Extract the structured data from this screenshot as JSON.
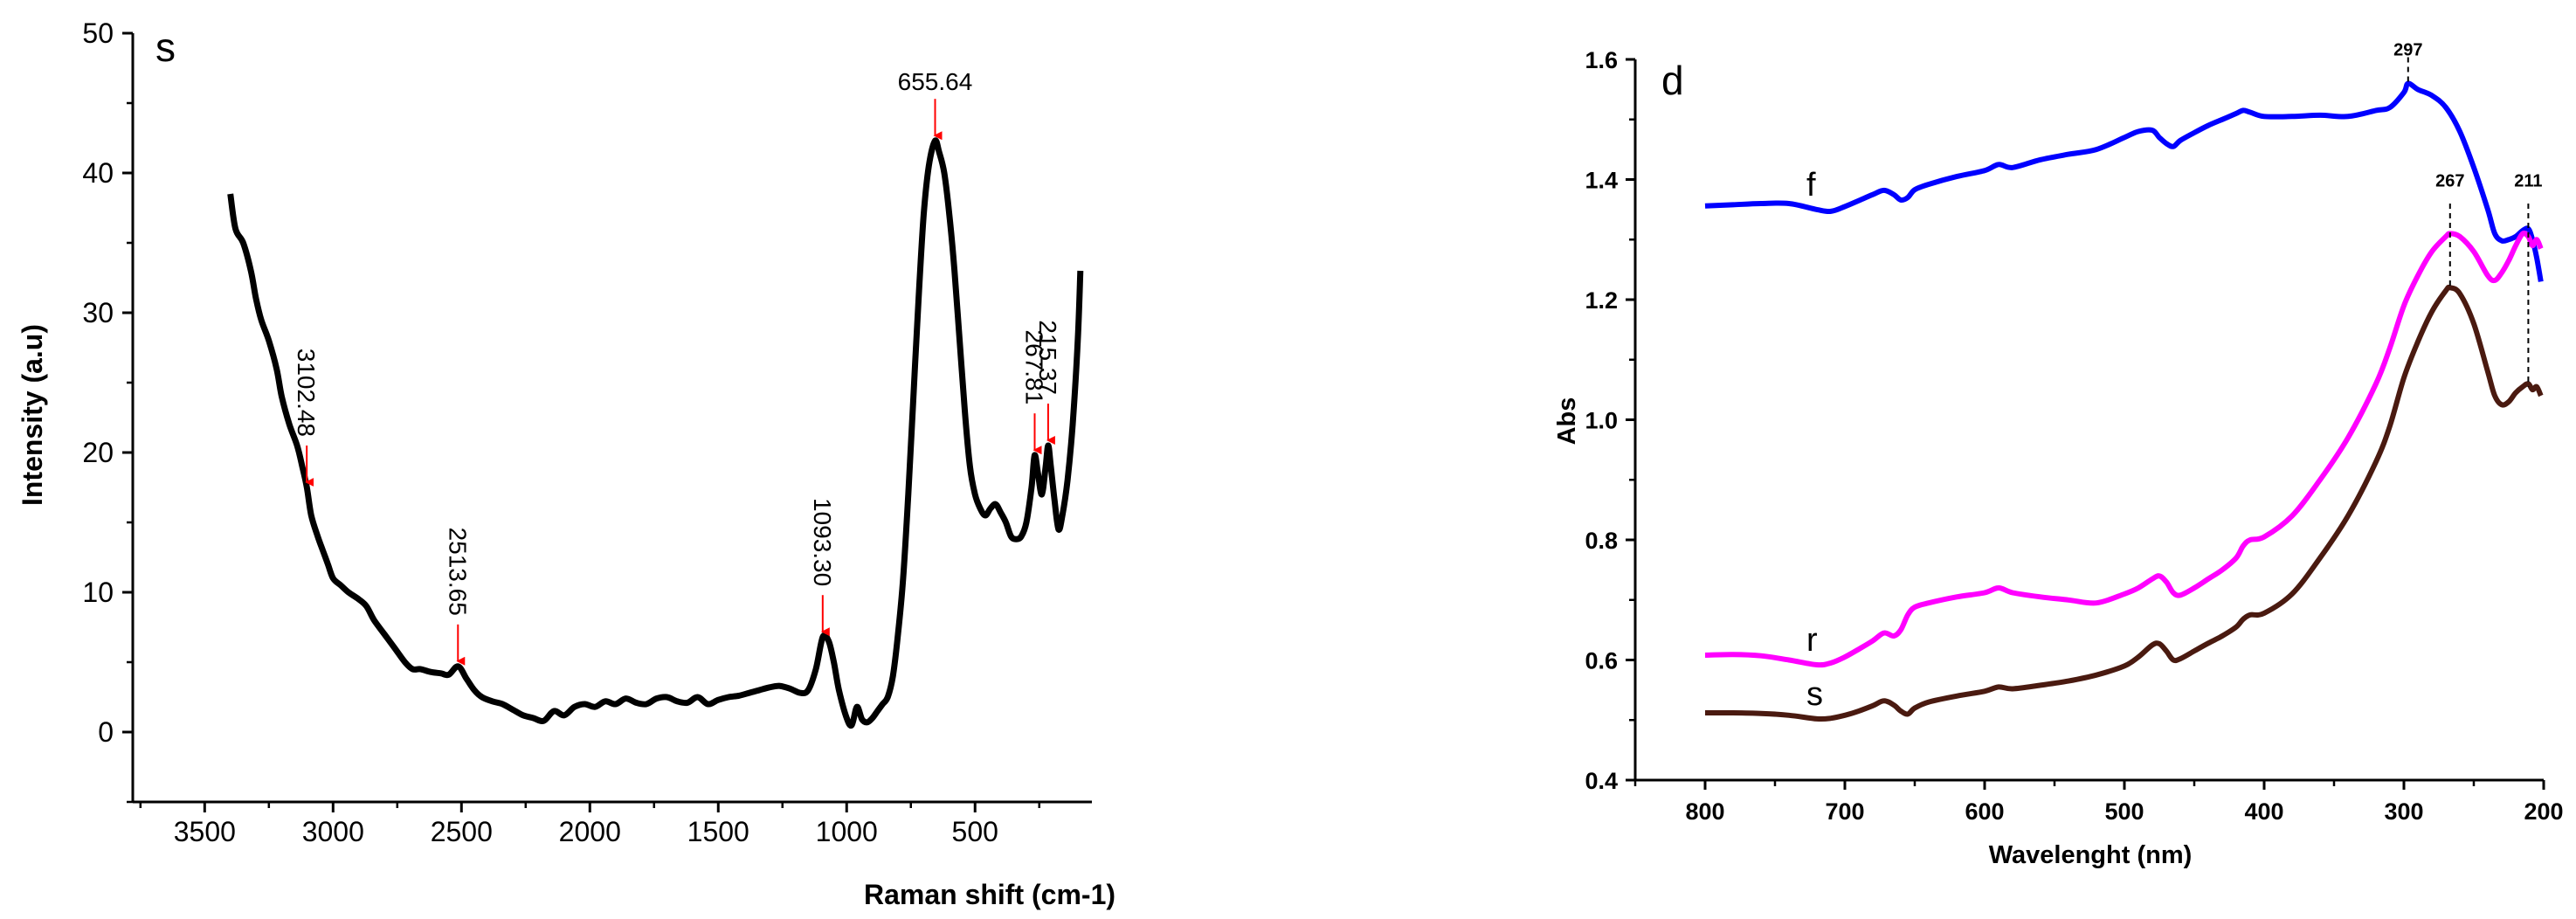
{
  "chart_data": [
    {
      "type": "line",
      "panel_label": "s",
      "xlabel": "Raman shift (cm-1)",
      "ylabel": "Intensity (a.u)",
      "xlim": [
        3780,
        45
      ],
      "ylim": [
        -5,
        50
      ],
      "xticks": [
        3500,
        3000,
        2500,
        2000,
        1500,
        1000,
        500
      ],
      "yticks": [
        0,
        10,
        20,
        30,
        40,
        50
      ],
      "series": [
        {
          "color": "#000000",
          "x": [
            3400,
            3380,
            3350,
            3320,
            3300,
            3280,
            3250,
            3220,
            3200,
            3170,
            3140,
            3120,
            3102,
            3085,
            3060,
            3040,
            3020,
            3000,
            2970,
            2940,
            2900,
            2870,
            2840,
            2800,
            2760,
            2720,
            2690,
            2660,
            2620,
            2580,
            2550,
            2513,
            2480,
            2450,
            2420,
            2380,
            2340,
            2300,
            2260,
            2220,
            2180,
            2140,
            2100,
            2060,
            2020,
            1980,
            1940,
            1900,
            1860,
            1820,
            1780,
            1740,
            1700,
            1660,
            1620,
            1580,
            1540,
            1500,
            1460,
            1420,
            1380,
            1340,
            1300,
            1260,
            1220,
            1180,
            1150,
            1120,
            1093,
            1070,
            1050,
            1030,
            1000,
            980,
            960,
            940,
            920,
            900,
            880,
            860,
            840,
            820,
            800,
            780,
            760,
            740,
            720,
            700,
            680,
            656,
            640,
            620,
            600,
            580,
            560,
            540,
            520,
            500,
            480,
            460,
            440,
            420,
            400,
            380,
            360,
            340,
            320,
            300,
            280,
            268,
            255,
            240,
            225,
            215,
            205,
            190,
            175,
            160,
            140,
            120,
            100,
            90
          ],
          "y": [
            38.5,
            36,
            35,
            33,
            31,
            29.5,
            28,
            26,
            24,
            22,
            20.5,
            19,
            17.5,
            15.5,
            14,
            13,
            12,
            11,
            10.5,
            10,
            9.5,
            9,
            8,
            7,
            6,
            5,
            4.5,
            4.5,
            4.3,
            4.2,
            4.1,
            4.7,
            3.8,
            3.0,
            2.5,
            2.2,
            2.0,
            1.6,
            1.2,
            1.0,
            0.8,
            1.5,
            1.2,
            1.8,
            2.0,
            1.8,
            2.2,
            2.0,
            2.4,
            2.1,
            2.0,
            2.4,
            2.5,
            2.2,
            2.1,
            2.5,
            2.0,
            2.3,
            2.5,
            2.6,
            2.8,
            3.0,
            3.2,
            3.3,
            3.1,
            2.8,
            3.0,
            4.5,
            6.8,
            6.5,
            5.0,
            3.0,
            1.0,
            0.5,
            1.8,
            0.9,
            0.7,
            1.0,
            1.5,
            2.0,
            2.5,
            4.0,
            7.0,
            11.0,
            17.0,
            24.0,
            31.0,
            37.0,
            40.5,
            42.3,
            41.5,
            40.0,
            37.0,
            33.0,
            28.0,
            23.0,
            19.0,
            17.0,
            16.0,
            15.5,
            16.0,
            16.3,
            15.7,
            15.0,
            14.0,
            13.8,
            14.0,
            15.0,
            17.5,
            19.8,
            18.5,
            17.0,
            19.0,
            20.5,
            19.0,
            16.5,
            14.5,
            15.5,
            18.0,
            22.0,
            28.0,
            33.0
          ]
        }
      ],
      "annotations": [
        {
          "text": "655.64",
          "x": 655.64,
          "y": 42.3,
          "orientation": "horizontal"
        },
        {
          "text": "3102.48",
          "x": 3102.48,
          "y": 17.5,
          "orientation": "vertical"
        },
        {
          "text": "2513.65",
          "x": 2513.65,
          "y": 4.7,
          "orientation": "vertical"
        },
        {
          "text": "1093.30",
          "x": 1093.3,
          "y": 6.8,
          "orientation": "vertical"
        },
        {
          "text": "267.81",
          "x": 267.81,
          "y": 19.8,
          "orientation": "vertical"
        },
        {
          "text": "215.37",
          "x": 215.37,
          "y": 20.5,
          "orientation": "vertical"
        }
      ],
      "arrow_color": "#ff0000"
    },
    {
      "type": "line",
      "panel_label": "d",
      "xlabel": "Wavelenght (nm)",
      "ylabel": "Abs",
      "xlim": [
        850,
        200
      ],
      "ylim": [
        0.4,
        1.6
      ],
      "xticks": [
        800,
        700,
        600,
        500,
        400,
        300,
        200
      ],
      "yticks": [
        0.4,
        0.6,
        0.8,
        1.0,
        1.2,
        1.4,
        1.6
      ],
      "series": [
        {
          "name": "f",
          "color": "#0000ff",
          "x": [
            800,
            780,
            760,
            740,
            720,
            710,
            700,
            690,
            680,
            672,
            665,
            660,
            655,
            650,
            640,
            620,
            600,
            590,
            580,
            560,
            540,
            520,
            500,
            490,
            480,
            475,
            470,
            465,
            460,
            450,
            440,
            430,
            420,
            415,
            410,
            400,
            380,
            360,
            340,
            320,
            310,
            300,
            297,
            290,
            280,
            270,
            260,
            250,
            240,
            235,
            230,
            225,
            220,
            215,
            211,
            208,
            205,
            202
          ],
          "y": [
            1.356,
            1.358,
            1.36,
            1.36,
            1.35,
            1.347,
            1.355,
            1.365,
            1.375,
            1.382,
            1.375,
            1.366,
            1.37,
            1.383,
            1.392,
            1.405,
            1.415,
            1.425,
            1.42,
            1.433,
            1.442,
            1.45,
            1.47,
            1.48,
            1.482,
            1.47,
            1.46,
            1.455,
            1.465,
            1.478,
            1.49,
            1.5,
            1.51,
            1.515,
            1.512,
            1.505,
            1.505,
            1.507,
            1.505,
            1.515,
            1.52,
            1.545,
            1.56,
            1.55,
            1.54,
            1.52,
            1.48,
            1.42,
            1.35,
            1.31,
            1.298,
            1.3,
            1.305,
            1.315,
            1.318,
            1.3,
            1.27,
            1.23
          ]
        },
        {
          "name": "r",
          "color": "#ff00ff",
          "x": [
            800,
            780,
            760,
            740,
            720,
            710,
            700,
            690,
            680,
            672,
            665,
            660,
            655,
            650,
            640,
            620,
            600,
            590,
            580,
            560,
            540,
            520,
            500,
            490,
            480,
            475,
            470,
            465,
            460,
            450,
            440,
            430,
            420,
            415,
            410,
            400,
            380,
            360,
            340,
            320,
            310,
            300,
            290,
            280,
            270,
            267,
            260,
            250,
            240,
            235,
            230,
            225,
            220,
            215,
            211,
            208,
            205,
            202
          ],
          "y": [
            0.608,
            0.609,
            0.607,
            0.6,
            0.592,
            0.595,
            0.605,
            0.618,
            0.632,
            0.645,
            0.64,
            0.65,
            0.675,
            0.688,
            0.695,
            0.705,
            0.712,
            0.72,
            0.712,
            0.705,
            0.7,
            0.695,
            0.71,
            0.72,
            0.735,
            0.74,
            0.73,
            0.712,
            0.708,
            0.72,
            0.735,
            0.75,
            0.77,
            0.79,
            0.8,
            0.805,
            0.84,
            0.9,
            0.97,
            1.06,
            1.12,
            1.19,
            1.24,
            1.28,
            1.305,
            1.31,
            1.305,
            1.28,
            1.24,
            1.232,
            1.245,
            1.265,
            1.29,
            1.31,
            1.305,
            1.29,
            1.3,
            1.285
          ]
        },
        {
          "name": "s",
          "color": "#4a1a10",
          "x": [
            800,
            780,
            760,
            740,
            720,
            710,
            700,
            690,
            680,
            672,
            665,
            660,
            655,
            650,
            640,
            620,
            600,
            590,
            580,
            560,
            540,
            520,
            500,
            490,
            480,
            475,
            470,
            465,
            460,
            450,
            440,
            430,
            420,
            415,
            410,
            400,
            380,
            360,
            340,
            320,
            310,
            300,
            290,
            280,
            270,
            267,
            260,
            250,
            240,
            235,
            230,
            225,
            220,
            215,
            211,
            208,
            205,
            202
          ],
          "y": [
            0.512,
            0.512,
            0.511,
            0.508,
            0.502,
            0.503,
            0.508,
            0.515,
            0.524,
            0.532,
            0.525,
            0.515,
            0.51,
            0.52,
            0.53,
            0.54,
            0.548,
            0.555,
            0.552,
            0.558,
            0.565,
            0.575,
            0.59,
            0.605,
            0.625,
            0.627,
            0.615,
            0.6,
            0.602,
            0.615,
            0.628,
            0.64,
            0.655,
            0.668,
            0.675,
            0.678,
            0.71,
            0.77,
            0.84,
            0.93,
            0.99,
            1.07,
            1.13,
            1.18,
            1.215,
            1.22,
            1.21,
            1.16,
            1.08,
            1.04,
            1.025,
            1.03,
            1.045,
            1.055,
            1.06,
            1.05,
            1.055,
            1.04
          ]
        }
      ],
      "annotations": [
        {
          "text": "297",
          "x": 297,
          "y": 1.56
        },
        {
          "text": "267",
          "x": 267,
          "y": 1.31
        },
        {
          "text": "211",
          "x": 211,
          "y": 1.318
        }
      ]
    }
  ]
}
